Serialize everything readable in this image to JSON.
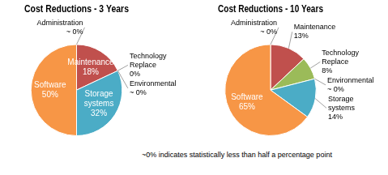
{
  "chart_data": [
    {
      "type": "pie",
      "title": "Cost Reductions - 3 Years",
      "categories": [
        "Administration",
        "Maintenance",
        "Technology Replace",
        "Environmental",
        "Storage systems",
        "Software"
      ],
      "values": [
        0,
        18,
        0,
        0,
        32,
        50
      ],
      "value_labels": [
        "~ 0%",
        "18%",
        "0%",
        "~ 0%",
        "32%",
        "50%"
      ],
      "colors": [
        "#4f81bd",
        "#c0504d",
        "#9bbb59",
        "#8064a2",
        "#4bacc6",
        "#f79646"
      ],
      "data_labels": true
    },
    {
      "type": "pie",
      "title": "Cost Reductions - 10 Years",
      "categories": [
        "Administration",
        "Maintenance",
        "Technology Replace",
        "Environmental",
        "Storage systems",
        "Software"
      ],
      "values": [
        0,
        13,
        8,
        0,
        14,
        65
      ],
      "value_labels": [
        "~ 0%",
        "13%",
        "8%",
        "~ 0%",
        "14%",
        "65%"
      ],
      "colors": [
        "#4f81bd",
        "#c0504d",
        "#9bbb59",
        "#8064a2",
        "#4bacc6",
        "#f79646"
      ],
      "data_labels": true
    }
  ],
  "footnote": "~0% indicates statistically less than half a percentage point"
}
